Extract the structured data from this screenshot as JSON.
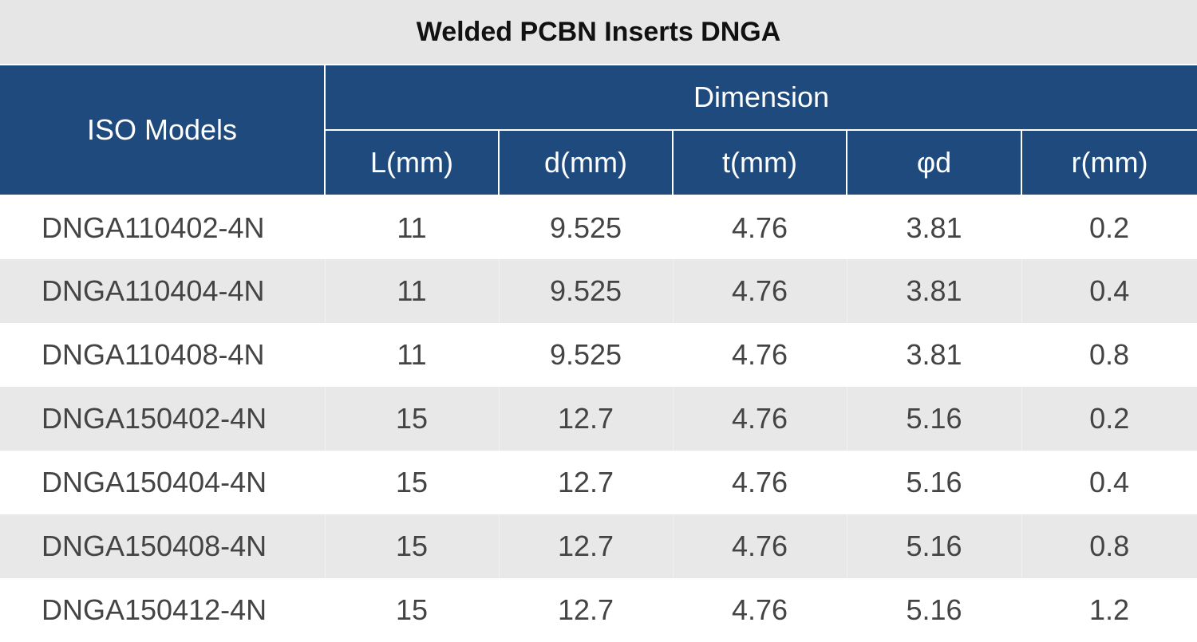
{
  "title": "Welded PCBN Inserts DNGA",
  "table": {
    "header": {
      "models_label": "ISO Models",
      "group_label": "Dimension",
      "columns": [
        "L(mm)",
        "d(mm)",
        "t(mm)",
        "φd",
        "r(mm)"
      ]
    },
    "rows": [
      {
        "model": "DNGA110402-4N",
        "L": "11",
        "d": "9.525",
        "t": "4.76",
        "phi_d": "3.81",
        "r": "0.2"
      },
      {
        "model": "DNGA110404-4N",
        "L": "11",
        "d": "9.525",
        "t": "4.76",
        "phi_d": "3.81",
        "r": "0.4"
      },
      {
        "model": "DNGA110408-4N",
        "L": "11",
        "d": "9.525",
        "t": "4.76",
        "phi_d": "3.81",
        "r": "0.8"
      },
      {
        "model": "DNGA150402-4N",
        "L": "15",
        "d": "12.7",
        "t": "4.76",
        "phi_d": "5.16",
        "r": "0.2"
      },
      {
        "model": "DNGA150404-4N",
        "L": "15",
        "d": "12.7",
        "t": "4.76",
        "phi_d": "5.16",
        "r": "0.4"
      },
      {
        "model": "DNGA150408-4N",
        "L": "15",
        "d": "12.7",
        "t": "4.76",
        "phi_d": "5.16",
        "r": "0.8"
      },
      {
        "model": "DNGA150412-4N",
        "L": "15",
        "d": "12.7",
        "t": "4.76",
        "phi_d": "5.16",
        "r": "1.2"
      }
    ]
  },
  "colors": {
    "header_bg": "#1f4a7d",
    "title_bg": "#e6e6e6",
    "row_alt_bg": "#e8e8e8",
    "text": "#444444"
  }
}
